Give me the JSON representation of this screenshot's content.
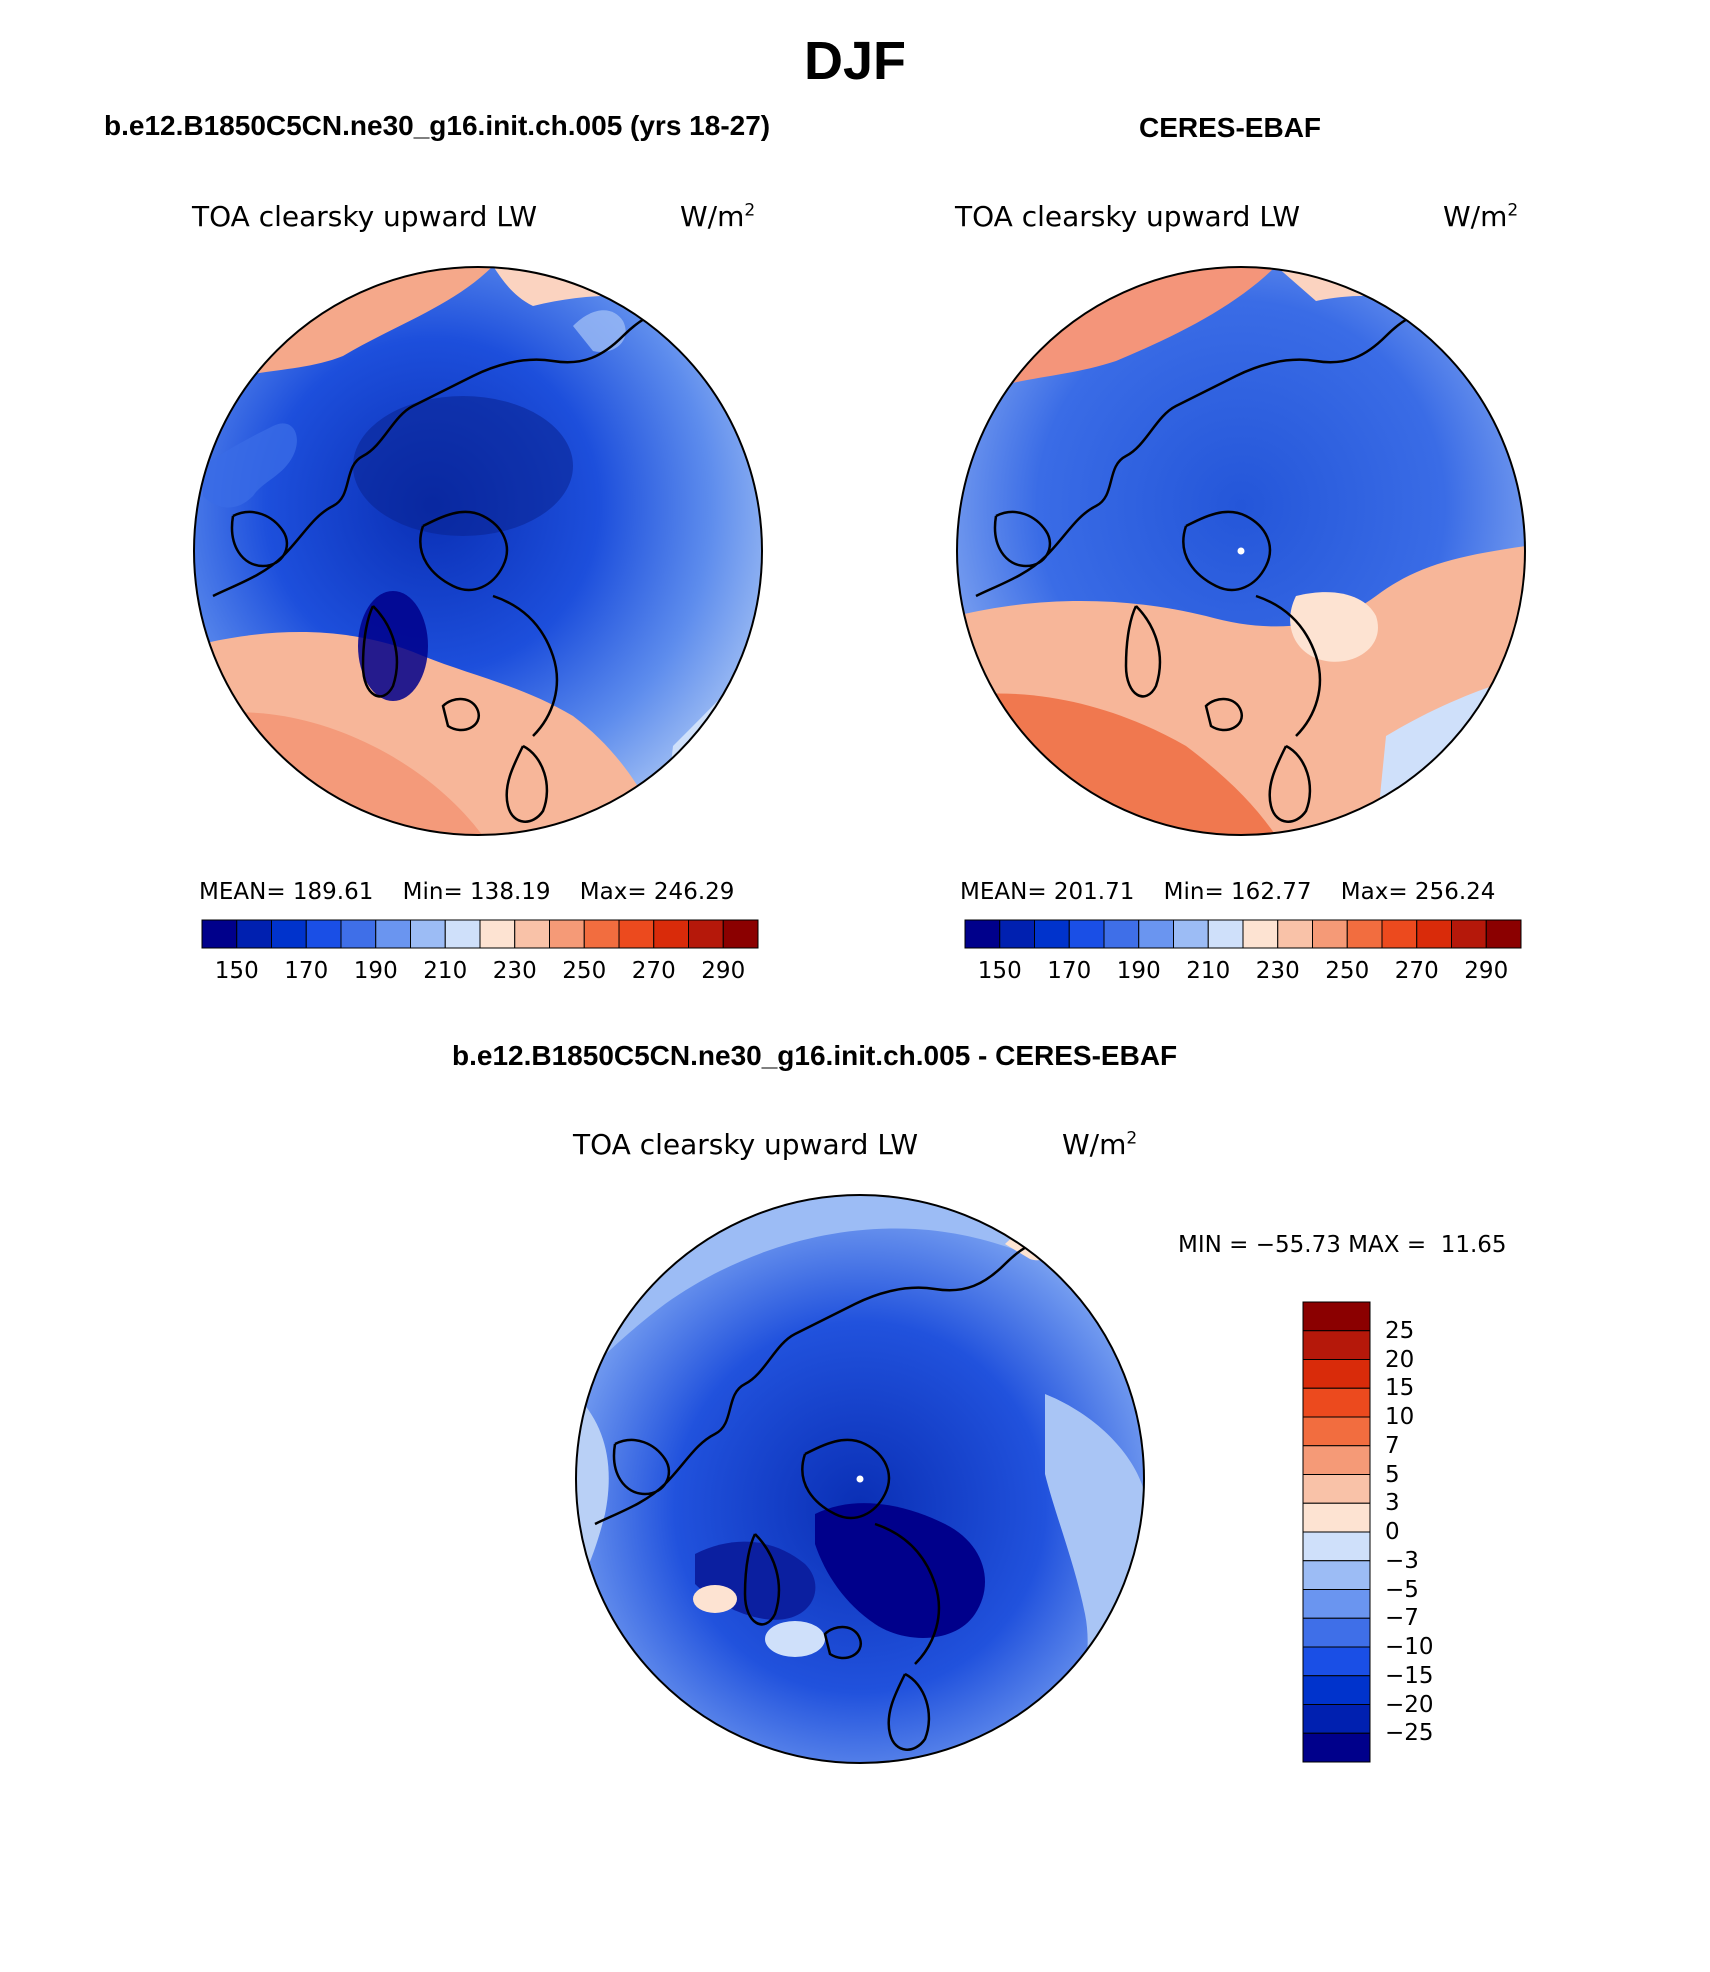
{
  "figure": {
    "title": "DJF"
  },
  "panels": [
    {
      "case_title": "b.e12.B1850C5CN.ne30_g16.init.ch.005 (yrs 18-27)",
      "variable": "TOA clearsky upward LW",
      "units": "W/m",
      "units_sup": "2",
      "stats": {
        "mean_label": "MEAN=",
        "mean": "189.61",
        "min_label": "Min=",
        "min": "138.19",
        "max_label": "Max=",
        "max": "246.29"
      }
    },
    {
      "case_title": "CERES-EBAF",
      "variable": "TOA clearsky upward LW",
      "units": "W/m",
      "units_sup": "2",
      "stats": {
        "mean_label": "MEAN=",
        "mean": "201.71",
        "min_label": "Min=",
        "min": "162.77",
        "max_label": "Max=",
        "max": "256.24"
      }
    },
    {
      "case_title": "b.e12.B1850C5CN.ne30_g16.init.ch.005 - CERES-EBAF",
      "variable": "TOA clearsky upward LW",
      "units": "W/m",
      "units_sup": "2",
      "stats": {
        "min_label": "MIN =",
        "min": "−55.73",
        "max_label": "MAX =",
        "max": "11.65"
      }
    }
  ],
  "colorbars": {
    "absolute": {
      "colors": [
        "#00008b",
        "#0020b0",
        "#0033cc",
        "#1a4fe6",
        "#3f6fe8",
        "#6a95f0",
        "#9cbcf5",
        "#cfe0fa",
        "#fde3d2",
        "#f9c2a8",
        "#f59a77",
        "#f26d3f",
        "#ec4a1e",
        "#d92b0a",
        "#b5180a",
        "#8b0000"
      ],
      "labels": [
        "150",
        "170",
        "190",
        "210",
        "230",
        "250",
        "270",
        "290"
      ]
    },
    "difference": {
      "colors": [
        "#00008b",
        "#0020b0",
        "#0033cc",
        "#1a4fe6",
        "#3f6fe8",
        "#6a95f0",
        "#9cbcf5",
        "#cfe0fa",
        "#fde3d2",
        "#f9c2a8",
        "#f59a77",
        "#f26d3f",
        "#ec4a1e",
        "#d92b0a",
        "#b5180a",
        "#8b0000"
      ],
      "labels": [
        "−25",
        "−20",
        "−15",
        "−10",
        "−7",
        "−5",
        "−3",
        "0",
        "3",
        "5",
        "7",
        "10",
        "15",
        "20",
        "25"
      ]
    }
  },
  "map_fields": [
    {
      "ocean": "#2a5fe0",
      "core": "#0b2fb8",
      "warm": "#f7b79a",
      "warm2": "#fbd5c2",
      "edge": "#a8c4f4"
    },
    {
      "ocean": "#2f66e6",
      "core": "#2456d9",
      "warm": "#f49c7c",
      "warm2": "#fbd0bb",
      "edge": "#c9dcf8"
    },
    {
      "ocean": "#2050dd",
      "core": "#0a1fa3",
      "warm": "#b8d0f6",
      "warm2": "#dfe9fb",
      "edge": "#8fb0ee"
    }
  ]
}
